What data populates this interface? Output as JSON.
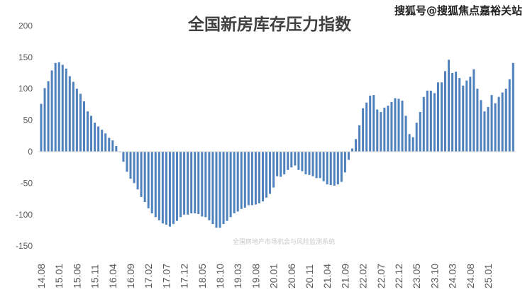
{
  "chart_data": {
    "type": "bar",
    "title": "全国新房库存压力指数",
    "xlabel": "",
    "ylabel": "",
    "ylim": [
      -150,
      200
    ],
    "yticks": [
      200,
      150,
      100,
      50,
      0,
      -50,
      -100,
      -150
    ],
    "xtick_labels": [
      "14.08",
      "15.01",
      "15.06",
      "15.11",
      "16.04",
      "16.09",
      "17.02",
      "17.07",
      "17.12",
      "18.05",
      "18.10",
      "19.03",
      "19.08",
      "20.01",
      "20.06",
      "20.11",
      "21.04",
      "21.09",
      "22.02",
      "22.07",
      "22.12",
      "23.05",
      "23.10",
      "24.03",
      "24.08",
      "25.01"
    ],
    "x_start": "14.08",
    "x_frequency": "monthly",
    "tick_every_months": 5,
    "grid": false,
    "legend": "none",
    "bar_color": "#4F81BD",
    "values": [
      76,
      101,
      112,
      129,
      141,
      142,
      138,
      132,
      120,
      111,
      100,
      92,
      80,
      64,
      57,
      46,
      40,
      35,
      29,
      22,
      18,
      9,
      -1,
      -16,
      -32,
      -43,
      -50,
      -60,
      -72,
      -80,
      -90,
      -98,
      -104,
      -109,
      -114,
      -116,
      -119,
      -115,
      -110,
      -104,
      -100,
      -100,
      -98,
      -98,
      -99,
      -103,
      -104,
      -109,
      -115,
      -121,
      -121,
      -115,
      -110,
      -104,
      -98,
      -95,
      -91,
      -89,
      -85,
      -85,
      -84,
      -82,
      -79,
      -73,
      -67,
      -57,
      -39,
      -40,
      -36,
      -29,
      -25,
      -22,
      -29,
      -31,
      -36,
      -37,
      -39,
      -42,
      -42,
      -47,
      -52,
      -53,
      -54,
      -52,
      -48,
      -33,
      -13,
      5,
      20,
      42,
      69,
      78,
      89,
      90,
      67,
      63,
      70,
      73,
      79,
      85,
      84,
      81,
      57,
      28,
      23,
      46,
      63,
      87,
      97,
      97,
      93,
      110,
      110,
      128,
      146,
      125,
      127,
      117,
      105,
      113,
      119,
      131,
      100,
      82,
      64,
      71,
      90,
      77,
      87,
      94,
      100,
      115,
      141
    ]
  },
  "watermark": "全国房地产市场机会与风险监测系统",
  "source_watermark": "搜狐号@搜狐焦点嘉裕关站"
}
